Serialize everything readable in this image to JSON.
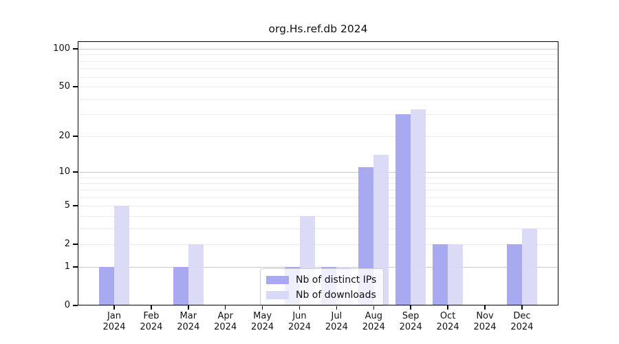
{
  "title": "org.Hs.ref.db 2024",
  "chart_data": {
    "type": "bar",
    "title": "org.Hs.ref.db 2024",
    "categories": [
      {
        "month": "Jan",
        "year": "2024"
      },
      {
        "month": "Feb",
        "year": "2024"
      },
      {
        "month": "Mar",
        "year": "2024"
      },
      {
        "month": "Apr",
        "year": "2024"
      },
      {
        "month": "May",
        "year": "2024"
      },
      {
        "month": "Jun",
        "year": "2024"
      },
      {
        "month": "Jul",
        "year": "2024"
      },
      {
        "month": "Aug",
        "year": "2024"
      },
      {
        "month": "Sep",
        "year": "2024"
      },
      {
        "month": "Oct",
        "year": "2024"
      },
      {
        "month": "Nov",
        "year": "2024"
      },
      {
        "month": "Dec",
        "year": "2024"
      }
    ],
    "series": [
      {
        "name": "Nb of distinct IPs",
        "color": "#a9a9f1",
        "values": [
          1,
          0,
          1,
          0,
          0,
          1,
          1,
          11,
          30,
          2,
          0,
          2
        ]
      },
      {
        "name": "Nb of downloads",
        "color": "#d8d8f7",
        "values": [
          5,
          0,
          2,
          0,
          0,
          4,
          1,
          14,
          33,
          2,
          0,
          3
        ]
      }
    ],
    "y_scale": "log1p",
    "y_ticks": [
      0,
      1,
      2,
      5,
      10,
      20,
      50,
      100
    ],
    "y_minor_gridlines": [
      2,
      3,
      4,
      5,
      6,
      7,
      8,
      9,
      20,
      30,
      40,
      50,
      60,
      70,
      80,
      90
    ],
    "y_major_gridlines": [
      1,
      10,
      100
    ],
    "ylim": [
      0,
      115
    ],
    "grid_major_color": "#c8c8c8",
    "grid_minor_color": "#ececec",
    "legend_position": "bottom-center-inside",
    "xlabel": "",
    "ylabel": ""
  }
}
